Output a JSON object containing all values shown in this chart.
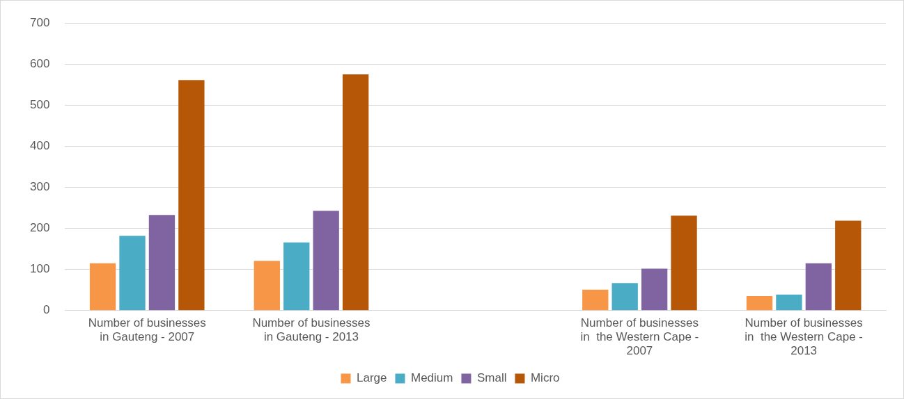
{
  "chart_data": {
    "type": "bar",
    "categories": [
      "Number of businesses in Gauteng - 2007",
      "Number of businesses in Gauteng - 2013",
      null,
      "Number of businesses in  the Western Cape - 2007",
      "Number of businesses in  the Western Cape - 2013"
    ],
    "series": [
      {
        "name": "Large",
        "color": "#f79646",
        "values": [
          115,
          121,
          null,
          51,
          35
        ]
      },
      {
        "name": "Medium",
        "color": "#4bacc6",
        "values": [
          182,
          166,
          null,
          67,
          39
        ]
      },
      {
        "name": "Small",
        "color": "#8064a2",
        "values": [
          233,
          243,
          null,
          102,
          115
        ]
      },
      {
        "name": "Micro",
        "color": "#b65708",
        "values": [
          561,
          575,
          null,
          231,
          219
        ]
      }
    ],
    "ylim": [
      0,
      700
    ],
    "yticks": [
      0,
      100,
      200,
      300,
      400,
      500,
      600,
      700
    ],
    "grid": "y",
    "legend": "bottom"
  }
}
